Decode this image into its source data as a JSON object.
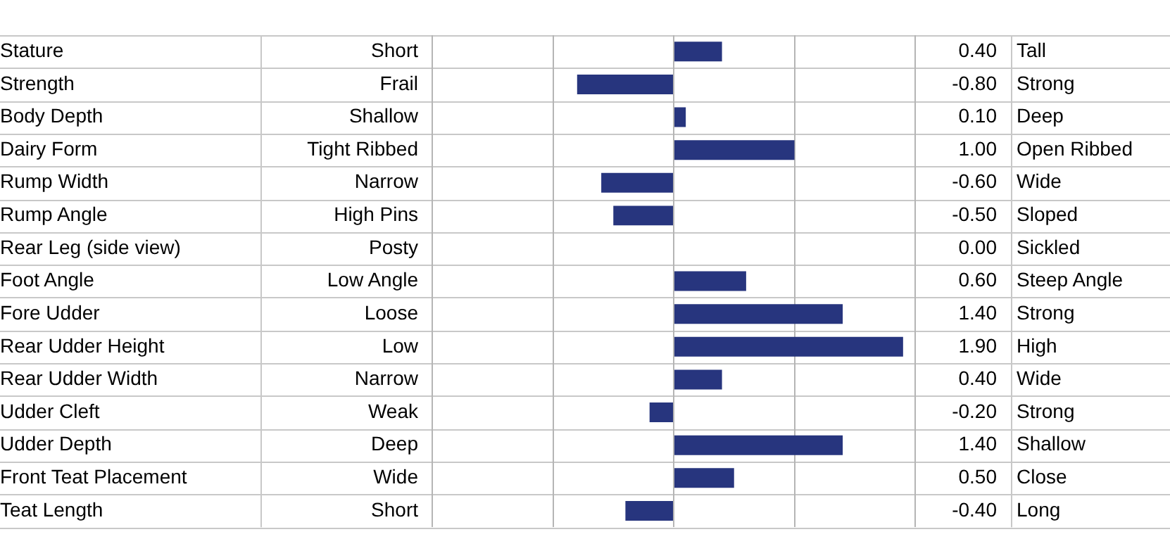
{
  "chart_data": {
    "type": "bar",
    "orientation": "horizontal",
    "categories": [
      "Stature",
      "Strength",
      "Body Depth",
      "Dairy Form",
      "Rump Width",
      "Rump Angle",
      "Rear Leg (side view)",
      "Foot Angle",
      "Fore Udder",
      "Rear Udder Height",
      "Rear Udder Width",
      "Udder Cleft",
      "Udder Depth",
      "Front Teat Placement",
      "Teat Length"
    ],
    "values": [
      0.4,
      -0.8,
      0.1,
      1.0,
      -0.6,
      -0.5,
      0.0,
      0.6,
      1.4,
      1.9,
      0.4,
      -0.2,
      1.4,
      0.5,
      -0.4
    ],
    "value_labels": [
      "0.40",
      "-0.80",
      "0.10",
      "1.00",
      "-0.60",
      "-0.50",
      "0.00",
      "0.60",
      "1.40",
      "1.90",
      "0.40",
      "-0.20",
      "1.40",
      "0.50",
      "-0.40"
    ],
    "color": "#27357e",
    "xlim": [
      -2,
      2
    ],
    "xticks": [
      {
        "value": -2,
        "label": null
      },
      {
        "value": -1,
        "label": null
      },
      {
        "value": 0,
        "label": null
      },
      {
        "value": 1,
        "label": null
      },
      {
        "value": 2,
        "label": null
      }
    ],
    "tick_labels": "y",
    "grid": "x",
    "legend": false,
    "annotations": [
      "Short",
      "Frail",
      "Shallow",
      "Tight Ribbed",
      "Narrow",
      "High Pins",
      "Posty",
      "Low Angle",
      "Loose",
      "Low",
      "Narrow",
      "Weak",
      "Deep",
      "Wide",
      "Short",
      "Tall",
      "Strong",
      "Deep",
      "Open Ribbed",
      "Wide",
      "Sloped",
      "Sickled",
      "Steep Angle",
      "Strong",
      "High",
      "Wide",
      "Strong",
      "Shallow",
      "Close",
      "Long"
    ]
  }
}
